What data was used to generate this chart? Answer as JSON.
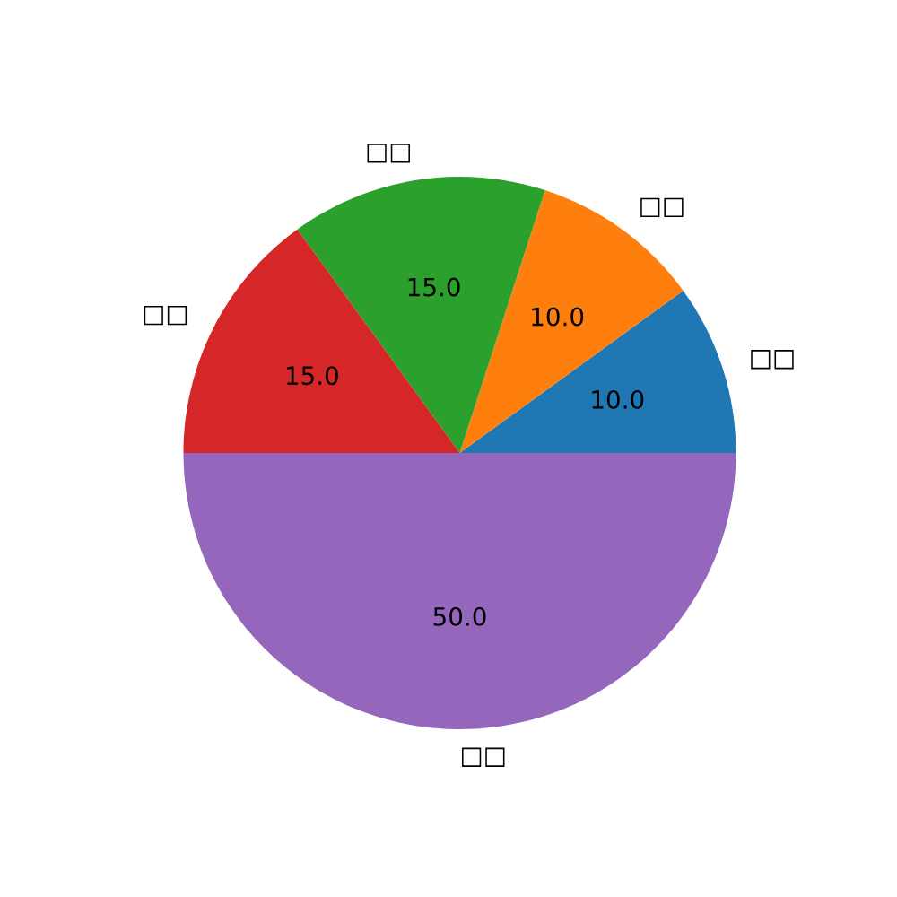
{
  "chart_data": {
    "type": "pie",
    "categories": [
      "□□",
      "□□",
      "□□",
      "□□",
      "□□"
    ],
    "values": [
      10,
      10,
      15,
      15,
      50
    ],
    "value_labels": [
      "10.0",
      "10.0",
      "15.0",
      "15.0",
      "50.0"
    ],
    "colors": [
      "#1f77b4",
      "#ff7f0e",
      "#2ca02c",
      "#d62728",
      "#9467bd"
    ]
  }
}
